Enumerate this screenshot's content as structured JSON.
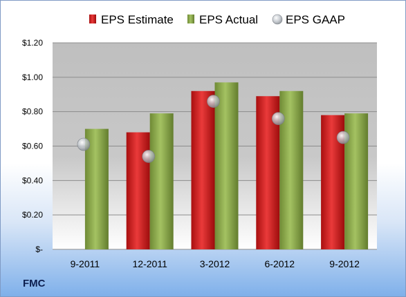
{
  "company": "FMC",
  "colors": {
    "estimate": "#d42a2a",
    "actual": "#8aab4c",
    "gaap": "#a9afb6"
  },
  "chart_data": {
    "type": "bar",
    "title": "",
    "xlabel": "",
    "ylabel": "",
    "categories": [
      "9-2011",
      "12-2011",
      "3-2012",
      "6-2012",
      "9-2012"
    ],
    "series": [
      {
        "name": "EPS Estimate",
        "kind": "bar",
        "values": [
          null,
          0.68,
          0.92,
          0.89,
          0.78
        ]
      },
      {
        "name": "EPS Actual",
        "kind": "bar",
        "values": [
          0.7,
          0.79,
          0.97,
          0.92,
          0.79
        ]
      },
      {
        "name": "EPS GAAP",
        "kind": "marker",
        "values": [
          0.61,
          0.54,
          0.86,
          0.76,
          0.65
        ]
      }
    ],
    "ylim": [
      0,
      1.2
    ],
    "yticks": [
      0,
      0.2,
      0.4,
      0.6,
      0.8,
      1.0,
      1.2
    ],
    "ytick_labels": [
      "$-",
      "$0.20",
      "$0.40",
      "$0.60",
      "$0.80",
      "$1.00",
      "$1.20"
    ],
    "grid": true,
    "legend": "top"
  }
}
